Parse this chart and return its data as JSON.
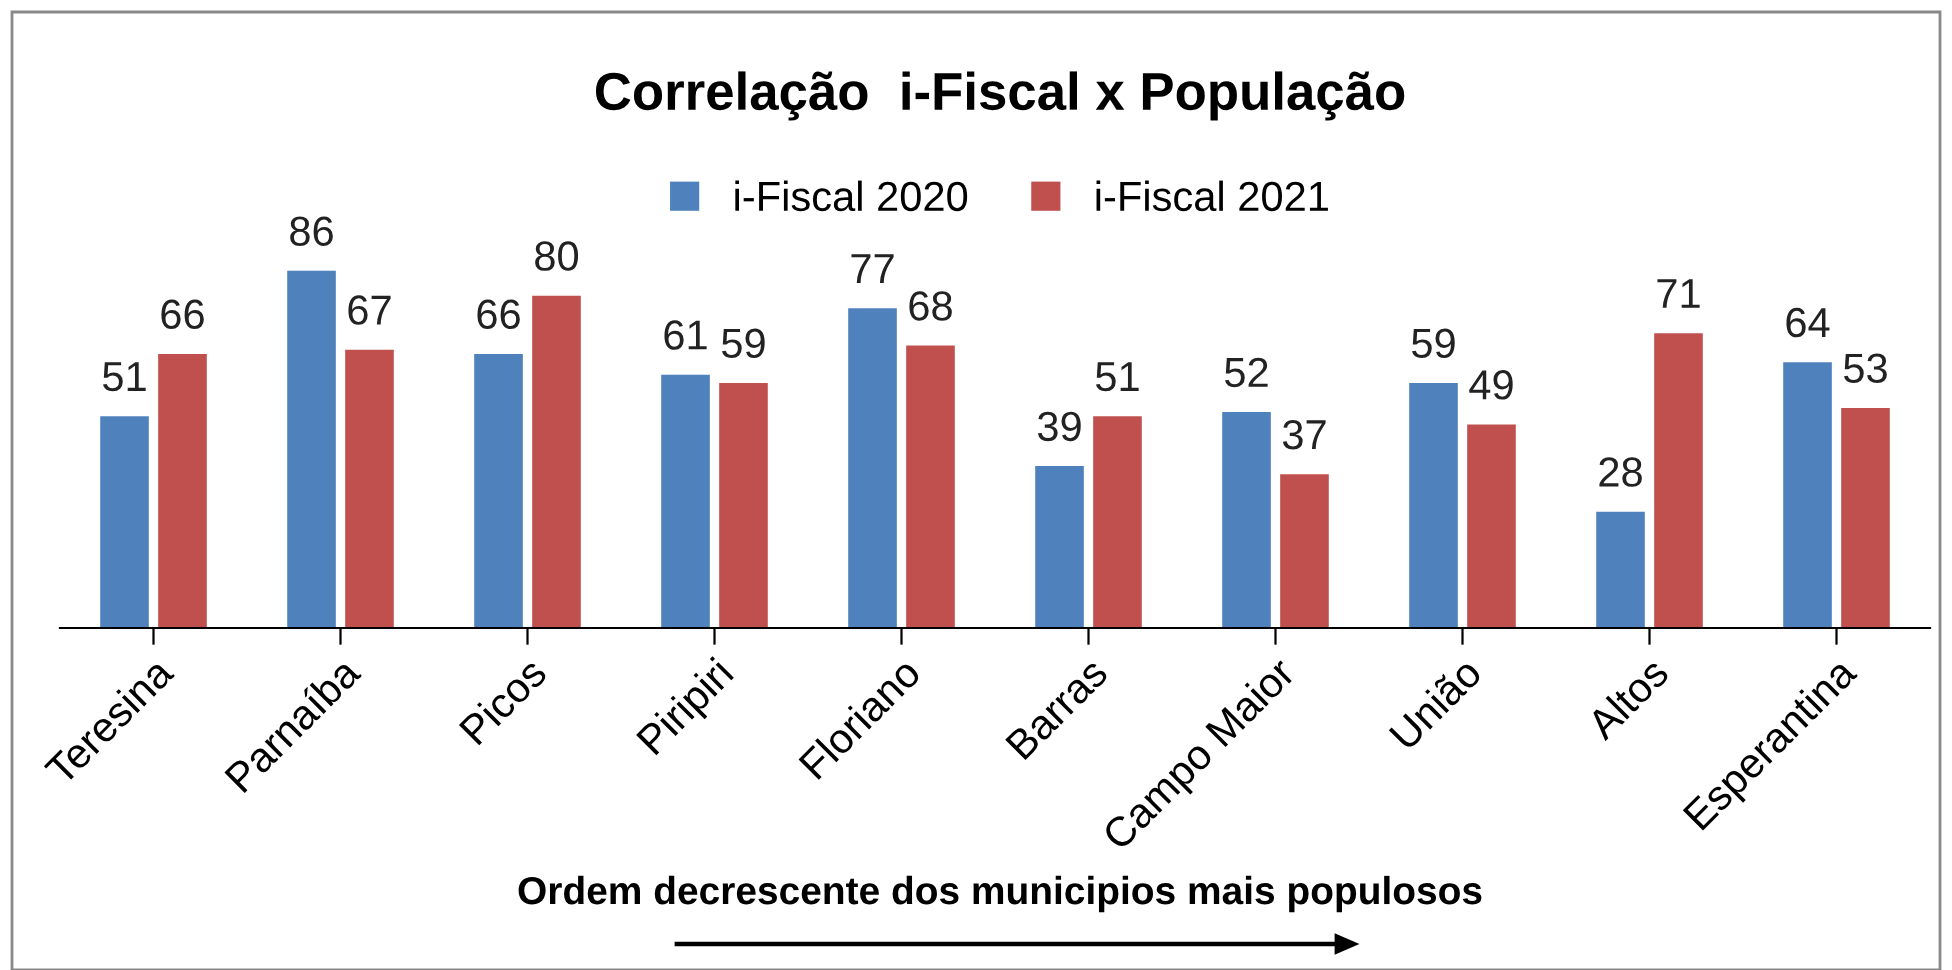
{
  "chart_data": {
    "type": "bar",
    "title": "Correlação  i-Fiscal x População",
    "xlabel": "Ordem decrescente dos municipios mais populosos",
    "categories": [
      "Teresina",
      "Parnaíba",
      "Picos",
      "Piripiri",
      "Floriano",
      "Barras",
      "Campo Maior",
      "União",
      "Altos",
      "Esperantina"
    ],
    "series": [
      {
        "name": "i-Fiscal 2020",
        "color": "#4f81bd",
        "values": [
          51,
          86,
          66,
          61,
          77,
          39,
          52,
          59,
          28,
          64
        ]
      },
      {
        "name": "i-Fiscal 2021",
        "color": "#c0504d",
        "values": [
          66,
          67,
          80,
          59,
          68,
          51,
          37,
          49,
          71,
          53
        ]
      }
    ],
    "data_labels": true,
    "legend": "top",
    "grid": false
  }
}
